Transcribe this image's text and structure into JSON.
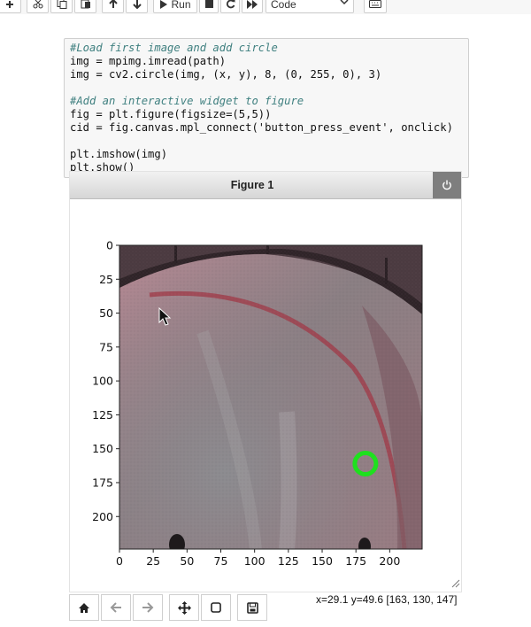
{
  "toolbar": {
    "run_label": "Run",
    "cell_type": "Code",
    "icons": [
      "plus-icon",
      "scissors-icon",
      "copy-icon",
      "paste-icon",
      "arrow-up-icon",
      "arrow-down-icon",
      "play-icon",
      "stop-icon",
      "restart-icon",
      "fast-forward-icon",
      "keyboard-icon"
    ]
  },
  "code": {
    "lines": [
      "#Load first image and add circle",
      "img = mpimg.imread(path)",
      "img = cv2.circle(img, (x, y), 8, (0, 255, 0), 3)",
      "",
      "#Add an interactive widget to figure",
      "fig = plt.figure(figsize=(5,5))",
      "cid = fig.canvas.mpl_connect('button_press_event', onclick)",
      "",
      "plt.imshow(img)",
      "plt.show()"
    ]
  },
  "figure": {
    "title": "Figure 1",
    "colors": {
      "circle": "#1ee01e",
      "overlay": "#a06a78"
    }
  },
  "chart_data": {
    "type": "image",
    "x_ticks": [
      0,
      25,
      50,
      75,
      100,
      125,
      150,
      175,
      200
    ],
    "y_ticks": [
      0,
      25,
      50,
      75,
      100,
      125,
      150,
      175,
      200
    ],
    "xlim": [
      0,
      224
    ],
    "ylim": [
      224,
      0
    ],
    "marker": {
      "x": 182,
      "y": 161,
      "shape": "circle",
      "color": "#1ee01e"
    }
  },
  "status": {
    "coords": "x=29.1 y=49.6 [163, 130, 147]"
  },
  "navbar": {
    "icons": [
      "home-icon",
      "back-icon",
      "forward-icon",
      "pan-icon",
      "zoom-icon",
      "save-icon"
    ]
  }
}
